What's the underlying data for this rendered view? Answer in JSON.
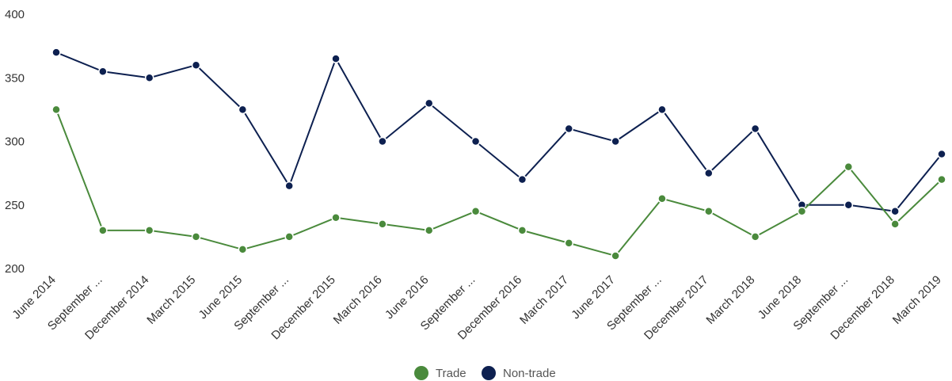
{
  "chart_data": {
    "type": "line",
    "title": "",
    "xlabel": "",
    "ylabel": "",
    "ylim": [
      200,
      400
    ],
    "yticks": [
      200,
      250,
      300,
      350,
      400
    ],
    "grid": false,
    "legend_position": "bottom-center",
    "categories": [
      "June 2014",
      "September ...",
      "December 2014",
      "March 2015",
      "June 2015",
      "September ...",
      "December 2015",
      "March 2016",
      "June 2016",
      "September ...",
      "December 2016",
      "March 2017",
      "June 2017",
      "September ...",
      "December 2017",
      "March 2018",
      "June 2018",
      "September ...",
      "December 2018",
      "March 2019"
    ],
    "series": [
      {
        "name": "Trade",
        "color": "#4a8a3c",
        "values": [
          325,
          230,
          230,
          225,
          215,
          225,
          240,
          235,
          230,
          245,
          230,
          220,
          210,
          255,
          245,
          225,
          245,
          280,
          235,
          270
        ]
      },
      {
        "name": "Non-trade",
        "color": "#0d2050",
        "values": [
          370,
          355,
          350,
          360,
          325,
          265,
          365,
          300,
          330,
          300,
          270,
          310,
          300,
          325,
          275,
          310,
          250,
          250,
          245,
          290
        ]
      }
    ]
  }
}
